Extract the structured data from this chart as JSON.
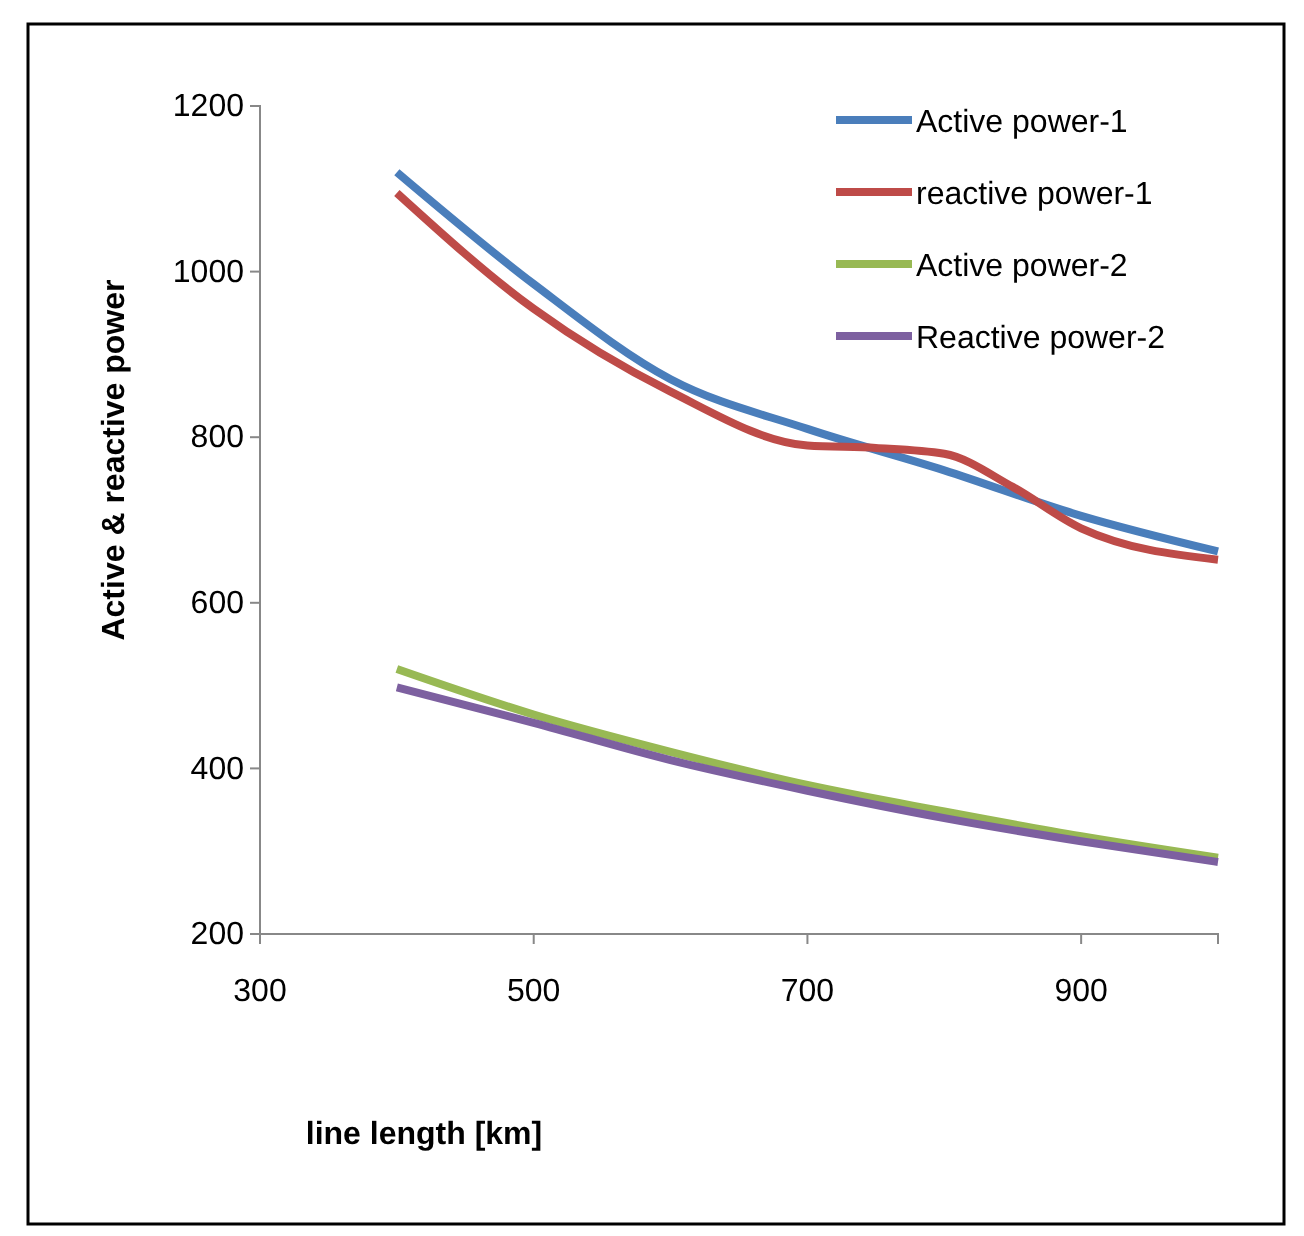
{
  "chart_data": {
    "type": "line",
    "xlabel": "line length [km]",
    "ylabel": "Active &  reactive power",
    "xlim": [
      300,
      1000
    ],
    "xticks": [
      300,
      500,
      700,
      900
    ],
    "ylim": [
      200,
      1200
    ],
    "yticks": [
      200,
      400,
      600,
      800,
      1000,
      1200
    ],
    "grid": false,
    "legend": "top right",
    "marker": "none",
    "line_style": "solid",
    "series": [
      {
        "name": "Active power-1",
        "color": "#4a7ebb",
        "x": [
          400,
          500,
          600,
          700,
          800,
          900,
          1000
        ],
        "values": [
          1120,
          985,
          870,
          810,
          760,
          705,
          662
        ]
      },
      {
        "name": "reactive power-1",
        "color": "#be4b48",
        "x": [
          400,
          500,
          600,
          700,
          750,
          800,
          850,
          900,
          1000
        ],
        "values": [
          1095,
          955,
          855,
          790,
          787,
          780,
          740,
          690,
          652
        ]
      },
      {
        "name": "Active power-2",
        "color": "#98b954",
        "x": [
          400,
          500,
          600,
          700,
          800,
          900,
          1000
        ],
        "values": [
          520,
          465,
          420,
          380,
          348,
          318,
          292
        ]
      },
      {
        "name": "Reactive power-2",
        "color": "#7d60a0",
        "x": [
          400,
          500,
          600,
          700,
          800,
          900,
          1000
        ],
        "values": [
          498,
          455,
          410,
          373,
          340,
          312,
          287
        ]
      }
    ]
  }
}
